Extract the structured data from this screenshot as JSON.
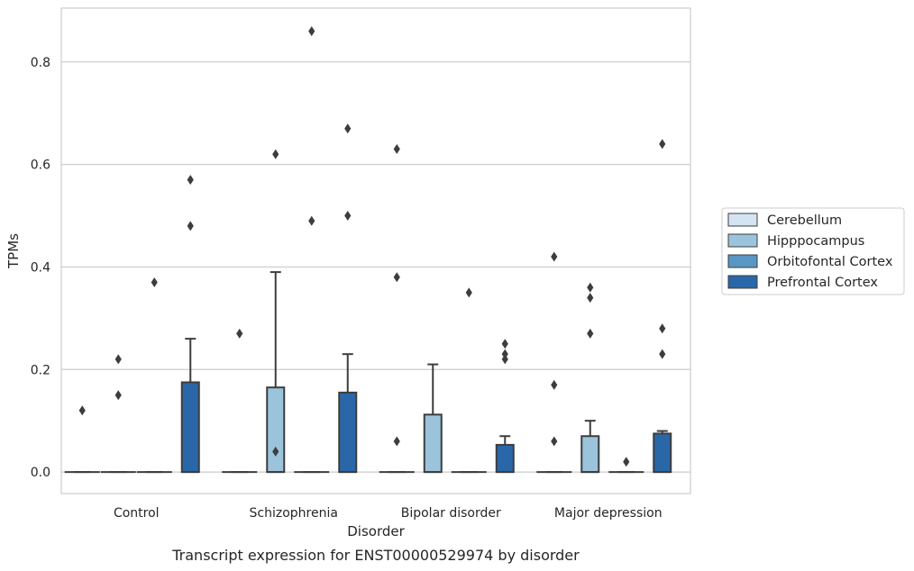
{
  "caption": "Transcript expression for ENST00000529974 by disorder",
  "chart_data": {
    "type": "box",
    "title": "",
    "xlabel": "Disorder",
    "ylabel": "TPMs",
    "categories": [
      "Control",
      "Schizophrenia",
      "Bipolar disorder",
      "Major depression"
    ],
    "ylim": [
      -0.042,
      0.905
    ],
    "yticks": [
      0.0,
      0.2,
      0.4,
      0.6,
      0.8
    ],
    "ytick_labels": [
      "0.0",
      "0.2",
      "0.4",
      "0.6",
      "0.8"
    ],
    "grid": "horizontal",
    "legend_position": "right",
    "series": [
      {
        "name": "Cerebellum",
        "color": "#d4e4f2",
        "boxes": [
          {
            "q1": 0,
            "median": 0,
            "q3": 0,
            "whisker_low": 0,
            "whisker_high": 0,
            "outliers": [
              0.12
            ]
          },
          {
            "q1": 0,
            "median": 0,
            "q3": 0,
            "whisker_low": 0,
            "whisker_high": 0,
            "outliers": [
              0.27
            ]
          },
          {
            "q1": 0,
            "median": 0,
            "q3": 0,
            "whisker_low": 0,
            "whisker_high": 0,
            "outliers": [
              0.06,
              0.38,
              0.63
            ]
          },
          {
            "q1": 0,
            "median": 0,
            "q3": 0,
            "whisker_low": 0,
            "whisker_high": 0,
            "outliers": [
              0.06,
              0.17,
              0.42
            ]
          }
        ]
      },
      {
        "name": "Hipppocampus",
        "color": "#9cc3dc",
        "boxes": [
          {
            "q1": 0,
            "median": 0,
            "q3": 0,
            "whisker_low": 0,
            "whisker_high": 0,
            "outliers": [
              0.15,
              0.22
            ]
          },
          {
            "q1": 0,
            "median": 0,
            "q3": 0.165,
            "whisker_low": 0,
            "whisker_high": 0.39,
            "outliers": [
              0.04,
              0.62
            ]
          },
          {
            "q1": 0,
            "median": 0,
            "q3": 0.112,
            "whisker_low": 0,
            "whisker_high": 0.21,
            "outliers": []
          },
          {
            "q1": 0,
            "median": 0,
            "q3": 0.07,
            "whisker_low": 0,
            "whisker_high": 0.1,
            "outliers": [
              0.27,
              0.34,
              0.36
            ]
          }
        ]
      },
      {
        "name": "Orbitofontal Cortex",
        "color": "#5896c4",
        "boxes": [
          {
            "q1": 0,
            "median": 0,
            "q3": 0,
            "whisker_low": 0,
            "whisker_high": 0,
            "outliers": [
              0.37
            ]
          },
          {
            "q1": 0,
            "median": 0,
            "q3": 0,
            "whisker_low": 0,
            "whisker_high": 0,
            "outliers": [
              0.49,
              0.86
            ]
          },
          {
            "q1": 0,
            "median": 0,
            "q3": 0,
            "whisker_low": 0,
            "whisker_high": 0,
            "outliers": [
              0.35
            ]
          },
          {
            "q1": 0,
            "median": 0,
            "q3": 0,
            "whisker_low": 0,
            "whisker_high": 0,
            "outliers": [
              0.02
            ]
          }
        ]
      },
      {
        "name": "Prefrontal Cortex",
        "color": "#2a67a8",
        "boxes": [
          {
            "q1": 0,
            "median": 0,
            "q3": 0.175,
            "whisker_low": 0,
            "whisker_high": 0.26,
            "outliers": [
              0.48,
              0.57
            ]
          },
          {
            "q1": 0,
            "median": 0,
            "q3": 0.155,
            "whisker_low": 0,
            "whisker_high": 0.23,
            "outliers": [
              0.5,
              0.67
            ]
          },
          {
            "q1": 0,
            "median": 0,
            "q3": 0.053,
            "whisker_low": 0,
            "whisker_high": 0.07,
            "outliers": [
              0.22,
              0.23,
              0.25
            ]
          },
          {
            "q1": 0,
            "median": 0,
            "q3": 0.075,
            "whisker_low": 0,
            "whisker_high": 0.08,
            "outliers": [
              0.23,
              0.28,
              0.64
            ]
          }
        ]
      }
    ]
  }
}
